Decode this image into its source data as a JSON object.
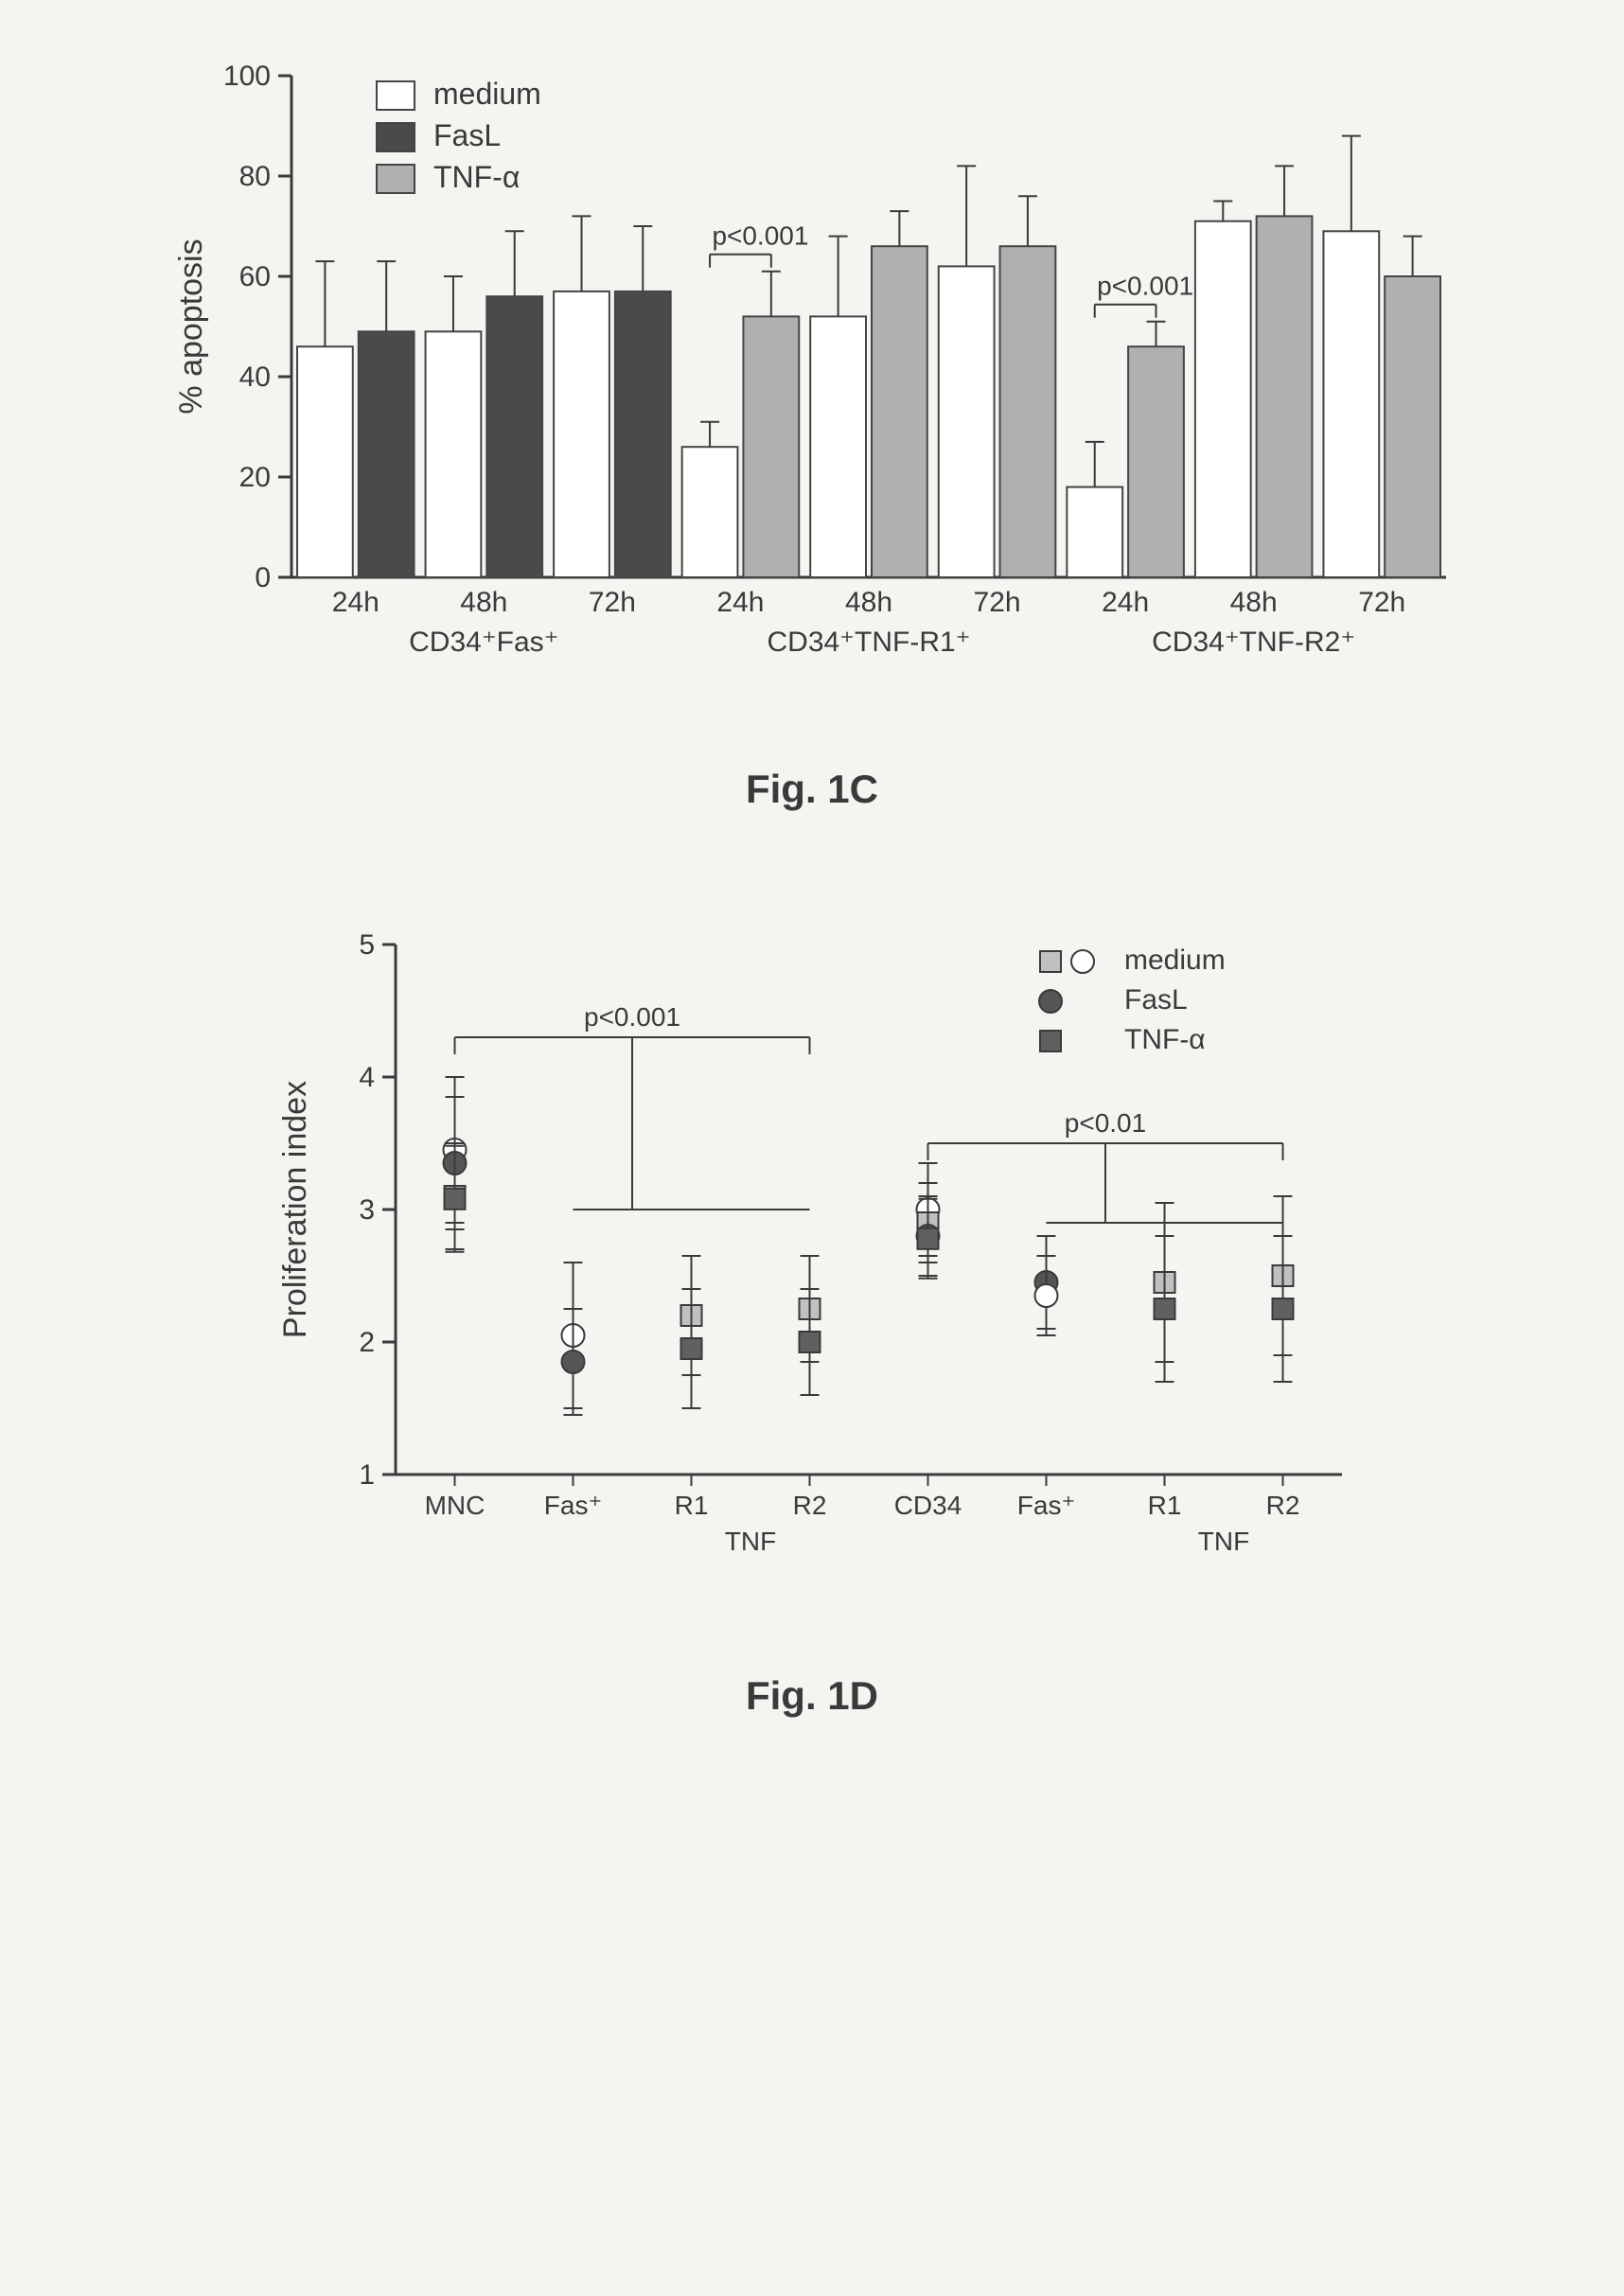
{
  "chart1C": {
    "type": "bar",
    "ylabel": "% apoptosis",
    "ylim": [
      0,
      100
    ],
    "ytick_step": 20,
    "label_fontsize": 34,
    "tick_fontsize": 30,
    "legend_fontsize": 32,
    "bg_color": "#f6f5f2",
    "axis_color": "#3a3a3a",
    "bar_stroke": "#444444",
    "legend": [
      {
        "label": "medium",
        "fill": "#ffffff"
      },
      {
        "label": "FasL",
        "fill": "#4a4a4a"
      },
      {
        "label": "TNF-α",
        "fill": "#b0b0b0"
      }
    ],
    "groups": [
      {
        "group_label": "CD34⁺Fas⁺",
        "sub": [
          {
            "x": "24h",
            "bars": [
              {
                "v": 46,
                "err": 17,
                "fill": "#ffffff"
              },
              {
                "v": 49,
                "err": 14,
                "fill": "#4a4a4a"
              }
            ]
          },
          {
            "x": "48h",
            "bars": [
              {
                "v": 49,
                "err": 11,
                "fill": "#ffffff"
              },
              {
                "v": 56,
                "err": 13,
                "fill": "#4a4a4a"
              }
            ]
          },
          {
            "x": "72h",
            "bars": [
              {
                "v": 57,
                "err": 15,
                "fill": "#ffffff"
              },
              {
                "v": 57,
                "err": 13,
                "fill": "#4a4a4a"
              }
            ]
          }
        ]
      },
      {
        "group_label": "CD34⁺TNF-R1⁺",
        "sub": [
          {
            "x": "24h",
            "bars": [
              {
                "v": 26,
                "err": 5,
                "fill": "#ffffff"
              },
              {
                "v": 52,
                "err": 9,
                "fill": "#b0b0b0"
              }
            ],
            "sig": "p<0.001"
          },
          {
            "x": "48h",
            "bars": [
              {
                "v": 52,
                "err": 16,
                "fill": "#ffffff"
              },
              {
                "v": 66,
                "err": 7,
                "fill": "#b0b0b0"
              }
            ]
          },
          {
            "x": "72h",
            "bars": [
              {
                "v": 62,
                "err": 20,
                "fill": "#ffffff"
              },
              {
                "v": 66,
                "err": 10,
                "fill": "#b0b0b0"
              }
            ]
          }
        ]
      },
      {
        "group_label": "CD34⁺TNF-R2⁺",
        "sub": [
          {
            "x": "24h",
            "bars": [
              {
                "v": 18,
                "err": 9,
                "fill": "#ffffff"
              },
              {
                "v": 46,
                "err": 5,
                "fill": "#b0b0b0"
              }
            ],
            "sig": "p<0.001"
          },
          {
            "x": "48h",
            "bars": [
              {
                "v": 71,
                "err": 4,
                "fill": "#ffffff"
              },
              {
                "v": 72,
                "err": 10,
                "fill": "#b0b0b0"
              }
            ]
          },
          {
            "x": "72h",
            "bars": [
              {
                "v": 69,
                "err": 19,
                "fill": "#ffffff"
              },
              {
                "v": 60,
                "err": 8,
                "fill": "#b0b0b0"
              }
            ]
          }
        ]
      }
    ],
    "caption": "Fig. 1C"
  },
  "chart1D": {
    "type": "scatter",
    "ylabel": "Proliferation index",
    "ylim": [
      1,
      5
    ],
    "ytick_step": 1,
    "label_fontsize": 34,
    "tick_fontsize": 30,
    "legend_fontsize": 30,
    "bg_color": "#f6f5f2",
    "axis_color": "#3a3a3a",
    "legend": [
      {
        "label": "medium",
        "markers": [
          {
            "shape": "square",
            "fill": "#c0c0c0"
          },
          {
            "shape": "circle",
            "fill": "#ffffff"
          }
        ]
      },
      {
        "label": "FasL",
        "markers": [
          {
            "shape": "circle",
            "fill": "#555555"
          }
        ]
      },
      {
        "label": "TNF-α",
        "markers": [
          {
            "shape": "square",
            "fill": "#606060"
          }
        ]
      }
    ],
    "x_categories": [
      "MNC",
      "Fas⁺",
      "R1",
      "R2",
      "CD34",
      "Fas⁺",
      "R1",
      "R2"
    ],
    "tnf_label": "TNF",
    "tnf_positions": [
      2,
      3,
      6,
      7
    ],
    "points": [
      {
        "x": 0,
        "y": 3.45,
        "err": 0.55,
        "shape": "circle",
        "fill": "#ffffff"
      },
      {
        "x": 0,
        "y": 3.35,
        "err": 0.5,
        "shape": "circle",
        "fill": "#555555"
      },
      {
        "x": 0,
        "y": 3.1,
        "err": 0.4,
        "shape": "square",
        "fill": "#c0c0c0"
      },
      {
        "x": 0,
        "y": 3.08,
        "err": 0.4,
        "shape": "square",
        "fill": "#606060"
      },
      {
        "x": 1,
        "y": 2.05,
        "err": 0.55,
        "shape": "circle",
        "fill": "#ffffff"
      },
      {
        "x": 1,
        "y": 1.85,
        "err": 0.4,
        "shape": "circle",
        "fill": "#555555"
      },
      {
        "x": 2,
        "y": 2.2,
        "err": 0.45,
        "shape": "square",
        "fill": "#c0c0c0"
      },
      {
        "x": 2,
        "y": 1.95,
        "err": 0.45,
        "shape": "square",
        "fill": "#606060"
      },
      {
        "x": 3,
        "y": 2.25,
        "err": 0.4,
        "shape": "square",
        "fill": "#c0c0c0"
      },
      {
        "x": 3,
        "y": 2.0,
        "err": 0.4,
        "shape": "square",
        "fill": "#606060"
      },
      {
        "x": 4,
        "y": 3.0,
        "err": 0.35,
        "shape": "circle",
        "fill": "#ffffff"
      },
      {
        "x": 4,
        "y": 2.9,
        "err": 0.3,
        "shape": "square",
        "fill": "#c0c0c0"
      },
      {
        "x": 4,
        "y": 2.8,
        "err": 0.3,
        "shape": "circle",
        "fill": "#555555"
      },
      {
        "x": 4,
        "y": 2.78,
        "err": 0.3,
        "shape": "square",
        "fill": "#606060"
      },
      {
        "x": 5,
        "y": 2.45,
        "err": 0.35,
        "shape": "circle",
        "fill": "#555555"
      },
      {
        "x": 5,
        "y": 2.35,
        "err": 0.3,
        "shape": "circle",
        "fill": "#ffffff"
      },
      {
        "x": 6,
        "y": 2.45,
        "err": 0.6,
        "shape": "square",
        "fill": "#c0c0c0"
      },
      {
        "x": 6,
        "y": 2.25,
        "err": 0.55,
        "shape": "square",
        "fill": "#606060"
      },
      {
        "x": 7,
        "y": 2.5,
        "err": 0.6,
        "shape": "square",
        "fill": "#c0c0c0"
      },
      {
        "x": 7,
        "y": 2.25,
        "err": 0.55,
        "shape": "square",
        "fill": "#606060"
      }
    ],
    "sig_brackets": [
      {
        "from": 0,
        "to": 3,
        "y": 4.3,
        "label": "p<0.001",
        "drop_to": 3.0
      },
      {
        "from": 4,
        "to": 7,
        "y": 3.5,
        "label": "p<0.01",
        "drop_to": 2.9
      }
    ],
    "caption": "Fig. 1D"
  }
}
